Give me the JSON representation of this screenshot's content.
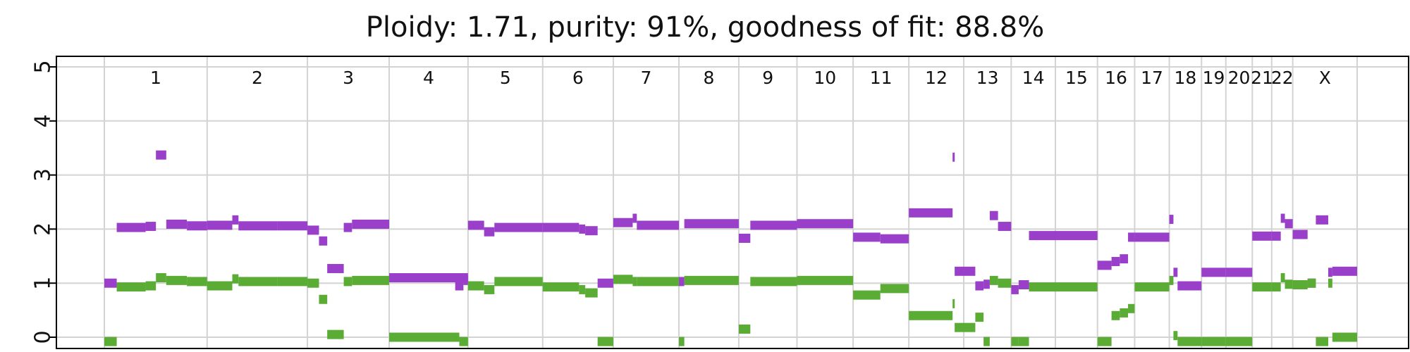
{
  "chart_data": {
    "type": "scatter",
    "title": "Ploidy: 1.71, purity: 91%, goodness of fit: 88.8%",
    "xlabel": "",
    "ylabel": "",
    "ylim": [
      -0.2,
      5.1
    ],
    "yticks": [
      0,
      1,
      2,
      3,
      4,
      5
    ],
    "grid": true,
    "legend": "none",
    "colors": {
      "major": "#9a3fc9",
      "minor": "#5aac35",
      "grid": "#d3d3d3"
    },
    "chromosomes": [
      {
        "label": "1",
        "start": 0,
        "end": 249
      },
      {
        "label": "2",
        "start": 249,
        "end": 492
      },
      {
        "label": "3",
        "start": 492,
        "end": 690
      },
      {
        "label": "4",
        "start": 690,
        "end": 881
      },
      {
        "label": "5",
        "start": 881,
        "end": 1062
      },
      {
        "label": "6",
        "start": 1062,
        "end": 1233
      },
      {
        "label": "7",
        "start": 1233,
        "end": 1392
      },
      {
        "label": "8",
        "start": 1392,
        "end": 1537
      },
      {
        "label": "9",
        "start": 1537,
        "end": 1678
      },
      {
        "label": "10",
        "start": 1678,
        "end": 1814
      },
      {
        "label": "11",
        "start": 1814,
        "end": 1949
      },
      {
        "label": "12",
        "start": 1949,
        "end": 2082
      },
      {
        "label": "13",
        "start": 2082,
        "end": 2197
      },
      {
        "label": "14",
        "start": 2197,
        "end": 2304
      },
      {
        "label": "15",
        "start": 2304,
        "end": 2406
      },
      {
        "label": "16",
        "start": 2406,
        "end": 2496
      },
      {
        "label": "17",
        "start": 2496,
        "end": 2580
      },
      {
        "label": "18",
        "start": 2580,
        "end": 2658
      },
      {
        "label": "19",
        "start": 2658,
        "end": 2717
      },
      {
        "label": "20",
        "start": 2717,
        "end": 2781
      },
      {
        "label": "21",
        "start": 2781,
        "end": 2828
      },
      {
        "label": "22",
        "start": 2828,
        "end": 2879
      },
      {
        "label": "X",
        "start": 2879,
        "end": 3035
      }
    ],
    "series": [
      {
        "key": "major",
        "segments": [
          [
            0,
            30,
            1.0
          ],
          [
            30,
            100,
            2.03
          ],
          [
            100,
            125,
            2.05
          ],
          [
            125,
            150,
            3.37
          ],
          [
            150,
            200,
            2.09
          ],
          [
            200,
            249,
            2.06
          ],
          [
            249,
            310,
            2.07
          ],
          [
            310,
            325,
            2.17
          ],
          [
            325,
            420,
            2.06
          ],
          [
            420,
            492,
            2.06
          ],
          [
            492,
            520,
            1.98
          ],
          [
            520,
            540,
            1.78
          ],
          [
            540,
            580,
            1.27
          ],
          [
            580,
            600,
            2.03
          ],
          [
            600,
            690,
            2.09
          ],
          [
            690,
            881,
            1.1
          ],
          [
            850,
            870,
            0.95
          ],
          [
            870,
            881,
            1.05
          ],
          [
            881,
            920,
            2.07
          ],
          [
            920,
            945,
            1.95
          ],
          [
            945,
            1062,
            2.03
          ],
          [
            1062,
            1150,
            2.03
          ],
          [
            1150,
            1165,
            2.0
          ],
          [
            1165,
            1195,
            1.97
          ],
          [
            1195,
            1233,
            1.0
          ],
          [
            1233,
            1280,
            2.12
          ],
          [
            1280,
            1290,
            2.2
          ],
          [
            1290,
            1392,
            2.07
          ],
          [
            1392,
            1405,
            1.03
          ],
          [
            1405,
            1537,
            2.1
          ],
          [
            1537,
            1565,
            1.83
          ],
          [
            1565,
            1678,
            2.07
          ],
          [
            1678,
            1814,
            2.1
          ],
          [
            1814,
            1880,
            1.85
          ],
          [
            1880,
            1949,
            1.82
          ],
          [
            1949,
            2055,
            2.3
          ],
          [
            2055,
            2060,
            3.33
          ],
          [
            2060,
            2082,
            1.22
          ],
          [
            2082,
            2110,
            1.22
          ],
          [
            2110,
            2130,
            0.95
          ],
          [
            2130,
            2145,
            0.98
          ],
          [
            2145,
            2165,
            2.25
          ],
          [
            2165,
            2197,
            2.05
          ],
          [
            2197,
            2215,
            0.88
          ],
          [
            2215,
            2240,
            0.97
          ],
          [
            2240,
            2304,
            1.88
          ],
          [
            2304,
            2406,
            1.88
          ],
          [
            2406,
            2440,
            1.33
          ],
          [
            2440,
            2460,
            1.4
          ],
          [
            2460,
            2480,
            1.45
          ],
          [
            2480,
            2496,
            1.85
          ],
          [
            2496,
            2580,
            1.85
          ],
          [
            2580,
            2590,
            2.18
          ],
          [
            2590,
            2600,
            1.2
          ],
          [
            2600,
            2658,
            0.95
          ],
          [
            2658,
            2717,
            1.2
          ],
          [
            2717,
            2781,
            1.2
          ],
          [
            2781,
            2828,
            1.87
          ],
          [
            2828,
            2850,
            1.87
          ],
          [
            2850,
            2860,
            2.2
          ],
          [
            2860,
            2879,
            2.1
          ],
          [
            2879,
            2915,
            1.9
          ],
          [
            2915,
            2935,
            1.0
          ],
          [
            2935,
            2965,
            2.17
          ],
          [
            2965,
            2975,
            1.2
          ],
          [
            2975,
            3035,
            1.22
          ]
        ]
      },
      {
        "key": "minor",
        "segments": [
          [
            0,
            30,
            -0.08
          ],
          [
            30,
            100,
            0.93
          ],
          [
            100,
            125,
            0.95
          ],
          [
            125,
            150,
            1.1
          ],
          [
            150,
            200,
            1.05
          ],
          [
            200,
            249,
            1.03
          ],
          [
            249,
            310,
            0.95
          ],
          [
            310,
            325,
            1.08
          ],
          [
            325,
            420,
            1.03
          ],
          [
            420,
            492,
            1.03
          ],
          [
            492,
            520,
            1.0
          ],
          [
            520,
            540,
            0.7
          ],
          [
            540,
            580,
            0.05
          ],
          [
            580,
            600,
            1.03
          ],
          [
            600,
            690,
            1.05
          ],
          [
            690,
            860,
            0.0
          ],
          [
            860,
            881,
            -0.08
          ],
          [
            881,
            920,
            0.95
          ],
          [
            920,
            945,
            0.88
          ],
          [
            945,
            1062,
            1.03
          ],
          [
            1062,
            1150,
            0.93
          ],
          [
            1150,
            1165,
            0.88
          ],
          [
            1165,
            1195,
            0.82
          ],
          [
            1195,
            1233,
            -0.08
          ],
          [
            1233,
            1280,
            1.07
          ],
          [
            1280,
            1290,
            1.03
          ],
          [
            1290,
            1392,
            1.03
          ],
          [
            1392,
            1405,
            -0.08
          ],
          [
            1405,
            1537,
            1.05
          ],
          [
            1537,
            1565,
            0.15
          ],
          [
            1565,
            1678,
            1.03
          ],
          [
            1678,
            1814,
            1.05
          ],
          [
            1814,
            1880,
            0.78
          ],
          [
            1880,
            1949,
            0.9
          ],
          [
            1949,
            2055,
            0.4
          ],
          [
            2055,
            2060,
            0.62
          ],
          [
            2060,
            2082,
            0.18
          ],
          [
            2082,
            2110,
            0.18
          ],
          [
            2110,
            2130,
            0.37
          ],
          [
            2130,
            2145,
            -0.08
          ],
          [
            2145,
            2165,
            1.05
          ],
          [
            2165,
            2197,
            1.0
          ],
          [
            2197,
            2215,
            -0.08
          ],
          [
            2215,
            2240,
            -0.08
          ],
          [
            2240,
            2304,
            0.93
          ],
          [
            2304,
            2406,
            0.93
          ],
          [
            2406,
            2440,
            -0.08
          ],
          [
            2440,
            2460,
            0.4
          ],
          [
            2460,
            2480,
            0.45
          ],
          [
            2480,
            2496,
            0.53
          ],
          [
            2496,
            2580,
            0.93
          ],
          [
            2580,
            2590,
            1.05
          ],
          [
            2590,
            2600,
            0.03
          ],
          [
            2600,
            2658,
            -0.08
          ],
          [
            2658,
            2717,
            -0.08
          ],
          [
            2717,
            2781,
            -0.08
          ],
          [
            2781,
            2828,
            0.93
          ],
          [
            2828,
            2850,
            0.93
          ],
          [
            2850,
            2860,
            1.1
          ],
          [
            2860,
            2879,
            0.98
          ],
          [
            2879,
            2915,
            0.97
          ],
          [
            2915,
            2935,
            1.0
          ],
          [
            2935,
            2965,
            -0.08
          ],
          [
            2965,
            2975,
            1.0
          ],
          [
            2975,
            3035,
            0.0
          ]
        ]
      }
    ]
  }
}
